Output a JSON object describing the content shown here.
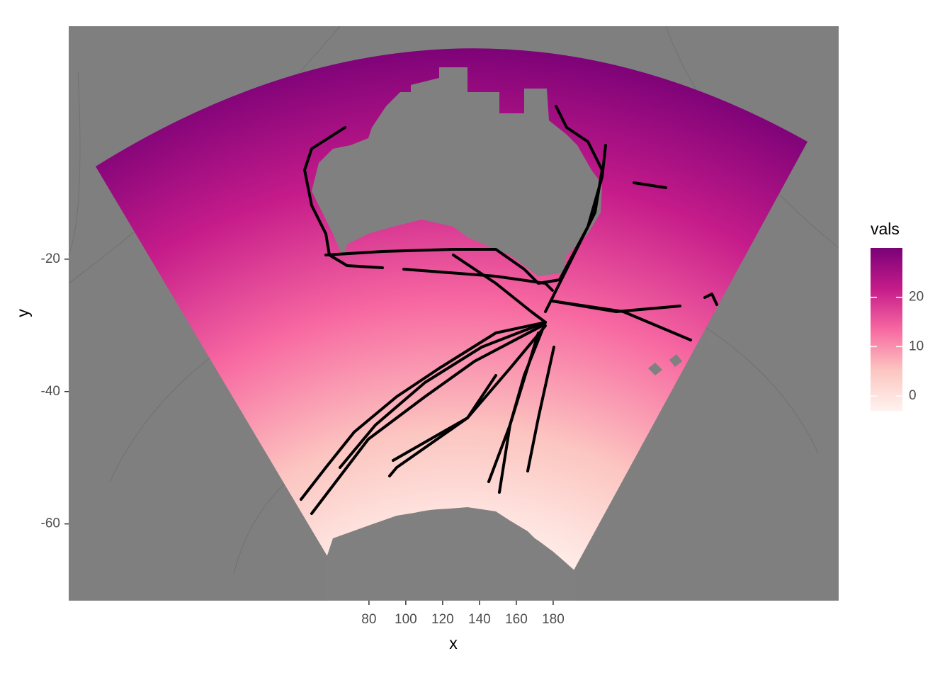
{
  "chart_data": {
    "type": "map",
    "xlabel": "x",
    "ylabel": "y",
    "xlim": [
      -83,
      335
    ],
    "xticks": [
      80,
      100,
      120,
      140,
      160,
      180
    ],
    "ylim": [
      -71.6,
      15.2
    ],
    "yticks": [
      -20,
      -40,
      -60
    ],
    "legend": {
      "title": "vals",
      "lim": [
        -3,
        30
      ],
      "ticks": [
        0,
        10,
        20
      ],
      "colors": [
        "#fff3ef",
        "#fcc5c0",
        "#f768a1",
        "#c51b8a",
        "#7a0177"
      ]
    }
  }
}
